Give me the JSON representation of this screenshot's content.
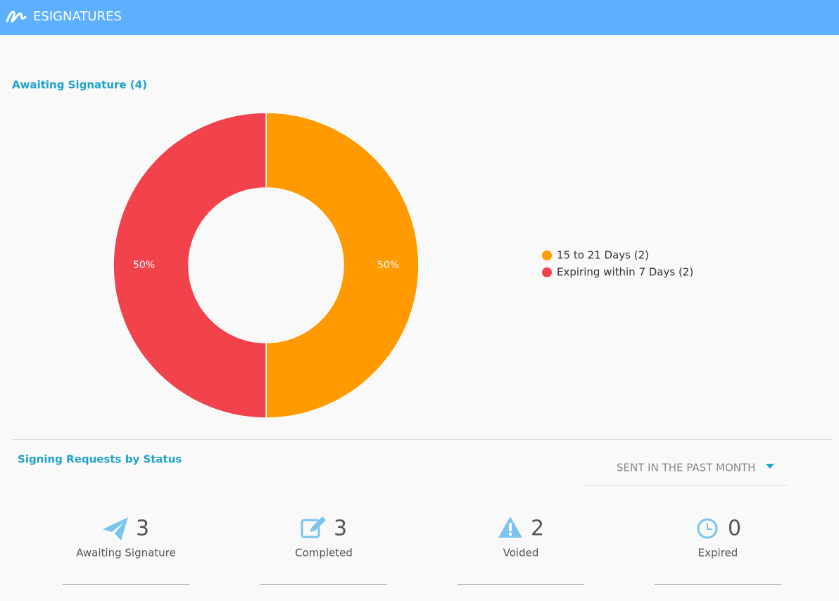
{
  "header": {
    "title": "ESIGNATURES"
  },
  "chart_data": {
    "type": "pie",
    "title": "Awaiting Signature (4)",
    "categories": [
      "15 to 21 Days (2)",
      "Expiring within 7 Days (2)"
    ],
    "values": [
      50,
      50
    ],
    "value_labels": [
      "50%",
      "50%"
    ],
    "colors": [
      "#ff9a00",
      "#f2434d"
    ],
    "donut": true,
    "legend": "right"
  },
  "status": {
    "title": "Signing Requests by Status",
    "filter": "SENT IN THE PAST MONTH",
    "items": [
      {
        "count": 3,
        "label": "Awaiting Signature"
      },
      {
        "count": 3,
        "label": "Completed"
      },
      {
        "count": 2,
        "label": "Voided"
      },
      {
        "count": 0,
        "label": "Expired"
      }
    ]
  }
}
